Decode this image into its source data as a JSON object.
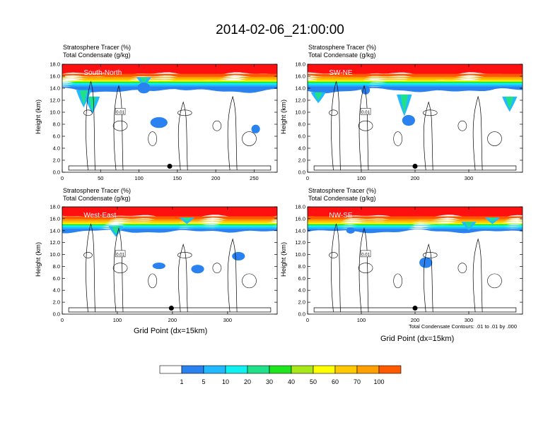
{
  "title": "2014-02-06_21:00:00",
  "header_lines": [
    "Stratosphere Tracer   (%)",
    "Total Condensate   (g/kg)"
  ],
  "ylabel": "Height (km)",
  "xlabel": "Grid Point (dx=15km)",
  "contour_note": "Total Condensate Contours: .01 to .01 by .000",
  "contour_label": "0.01",
  "colors": {
    "levels": [
      "#ffffff",
      "#2a82f0",
      "#21b9ff",
      "#10f0f0",
      "#20e08a",
      "#1ee51e",
      "#a8e818",
      "#ffff00",
      "#ffc800",
      "#ffa000",
      "#ff5a00",
      "#ff1010"
    ]
  },
  "colorbar": {
    "labels": [
      "1",
      "5",
      "10",
      "20",
      "30",
      "40",
      "50",
      "60",
      "70",
      "100"
    ]
  },
  "chart_data": [
    {
      "type": "heatmap",
      "name": "South-North",
      "xlim": [
        0,
        280
      ],
      "ylim": [
        0,
        18
      ],
      "xticks": [
        "0",
        "50",
        "100",
        "150",
        "200",
        "250"
      ],
      "xtick_values": [
        0,
        50,
        100,
        150,
        200,
        250
      ],
      "yticks": [
        "0.0",
        "2.0",
        "4.0",
        "6.0",
        "8.0",
        "10.0",
        "12.0",
        "14.0",
        "16.0",
        "18.0"
      ],
      "marker_x": 140,
      "marker_y": 1.0
    },
    {
      "type": "heatmap",
      "name": "SW-NE",
      "xlim": [
        0,
        400
      ],
      "ylim": [
        0,
        18
      ],
      "xticks": [
        "0",
        "100",
        "200",
        "300"
      ],
      "xtick_values": [
        0,
        100,
        200,
        300
      ],
      "yticks": [
        "0.0",
        "2.0",
        "4.0",
        "6.0",
        "8.0",
        "10.0",
        "12.0",
        "14.0",
        "16.0",
        "18.0"
      ],
      "marker_x": 200,
      "marker_y": 1.0
    },
    {
      "type": "heatmap",
      "name": "West-East",
      "xlim": [
        0,
        390
      ],
      "ylim": [
        0,
        18
      ],
      "xticks": [
        "0",
        "100",
        "200",
        "300"
      ],
      "xtick_values": [
        0,
        100,
        200,
        300
      ],
      "yticks": [
        "0.0",
        "2.0",
        "4.0",
        "6.0",
        "8.0",
        "10.0",
        "12.0",
        "14.0",
        "16.0",
        "18.0"
      ],
      "marker_x": 198,
      "marker_y": 1.0
    },
    {
      "type": "heatmap",
      "name": "NW-SE",
      "xlim": [
        0,
        400
      ],
      "ylim": [
        0,
        18
      ],
      "xticks": [
        "0",
        "100",
        "200",
        "300"
      ],
      "xtick_values": [
        0,
        100,
        200,
        300
      ],
      "yticks": [
        "0.0",
        "2.0",
        "4.0",
        "6.0",
        "8.0",
        "10.0",
        "12.0",
        "14.0",
        "16.0",
        "18.0"
      ],
      "marker_x": 200,
      "marker_y": 1.0
    }
  ]
}
